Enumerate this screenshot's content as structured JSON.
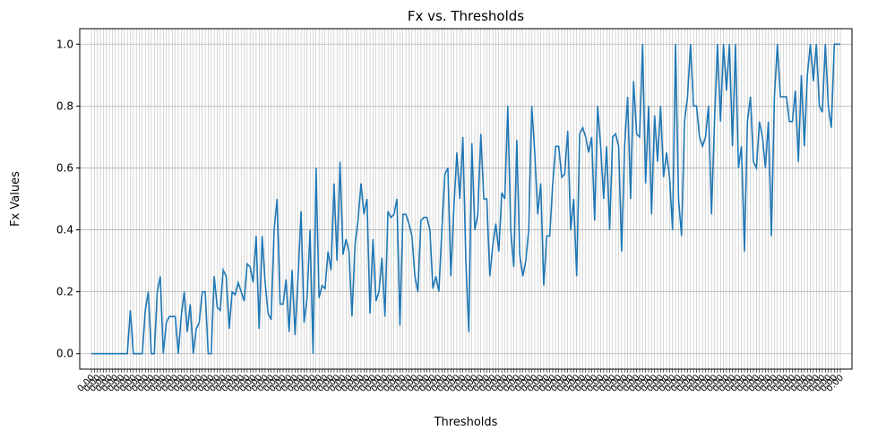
{
  "chart_data": {
    "type": "line",
    "title": "Fx vs. Thresholds",
    "xlabel": "Thresholds",
    "ylabel": "Fx Values",
    "ylim": [
      -0.05,
      1.05
    ],
    "yticks": [
      "0.0",
      "0.2",
      "0.4",
      "0.6",
      "0.8",
      "1.0"
    ],
    "xtick_labels_note": "dense overlapping threshold labels rotated 45°, illegible",
    "grid": true,
    "line_color": "#1f77b4",
    "values": [
      0,
      0,
      0,
      0,
      0,
      0,
      0,
      0,
      0,
      0,
      0,
      0,
      0,
      0.14,
      0,
      0,
      0,
      0,
      0.14,
      0.2,
      0,
      0,
      0.2,
      0.25,
      0,
      0.1,
      0.12,
      0.12,
      0.12,
      0,
      0.12,
      0.2,
      0.07,
      0.16,
      0,
      0.08,
      0.1,
      0.2,
      0.2,
      0,
      0,
      0.25,
      0.15,
      0.14,
      0.27,
      0.25,
      0.08,
      0.2,
      0.19,
      0.23,
      0.2,
      0.17,
      0.29,
      0.28,
      0.23,
      0.38,
      0.08,
      0.38,
      0.23,
      0.13,
      0.11,
      0.4,
      0.5,
      0.16,
      0.16,
      0.24,
      0.07,
      0.27,
      0.06,
      0.25,
      0.46,
      0.1,
      0.18,
      0.4,
      0,
      0.6,
      0.18,
      0.22,
      0.21,
      0.33,
      0.27,
      0.55,
      0.3,
      0.62,
      0.32,
      0.37,
      0.33,
      0.12,
      0.35,
      0.43,
      0.55,
      0.45,
      0.5,
      0.13,
      0.37,
      0.17,
      0.2,
      0.31,
      0.12,
      0.46,
      0.44,
      0.45,
      0.5,
      0.09,
      0.45,
      0.45,
      0.42,
      0.38,
      0.25,
      0.2,
      0.43,
      0.44,
      0.44,
      0.4,
      0.21,
      0.25,
      0.2,
      0.4,
      0.58,
      0.6,
      0.25,
      0.47,
      0.65,
      0.5,
      0.7,
      0.3,
      0.07,
      0.68,
      0.4,
      0.45,
      0.71,
      0.5,
      0.5,
      0.25,
      0.35,
      0.42,
      0.33,
      0.52,
      0.5,
      0.8,
      0.4,
      0.28,
      0.69,
      0.32,
      0.25,
      0.3,
      0.4,
      0.8,
      0.65,
      0.45,
      0.55,
      0.22,
      0.38,
      0.38,
      0.55,
      0.67,
      0.67,
      0.57,
      0.58,
      0.72,
      0.4,
      0.5,
      0.25,
      0.71,
      0.73,
      0.7,
      0.65,
      0.7,
      0.43,
      0.8,
      0.67,
      0.5,
      0.67,
      0.4,
      0.7,
      0.71,
      0.67,
      0.33,
      0.67,
      0.83,
      0.5,
      0.88,
      0.71,
      0.7,
      1.0,
      0.55,
      0.8,
      0.45,
      0.77,
      0.62,
      0.8,
      0.57,
      0.65,
      0.57,
      0.4,
      1.0,
      0.5,
      0.38,
      0.75,
      0.83,
      1.0,
      0.8,
      0.8,
      0.7,
      0.67,
      0.7,
      0.8,
      0.45,
      0.75,
      1.0,
      0.75,
      1.0,
      0.85,
      1.0,
      0.67,
      1.0,
      0.6,
      0.67,
      0.33,
      0.75,
      0.83,
      0.62,
      0.6,
      0.75,
      0.7,
      0.6,
      0.75,
      0.38,
      0.83,
      1.0,
      0.83,
      0.83,
      0.83,
      0.75,
      0.75,
      0.85,
      0.62,
      0.9,
      0.67,
      0.9,
      1.0,
      0.88,
      1.0,
      0.8,
      0.78,
      1.0,
      0.8,
      0.73,
      1.0,
      1.0,
      1.0
    ]
  }
}
